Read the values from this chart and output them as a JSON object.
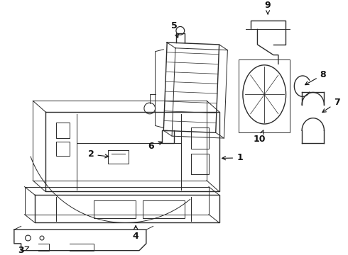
{
  "background_color": "#ffffff",
  "line_color": "#2a2a2a",
  "label_color": "#111111",
  "figsize": [
    4.9,
    3.6
  ],
  "dpi": 100
}
